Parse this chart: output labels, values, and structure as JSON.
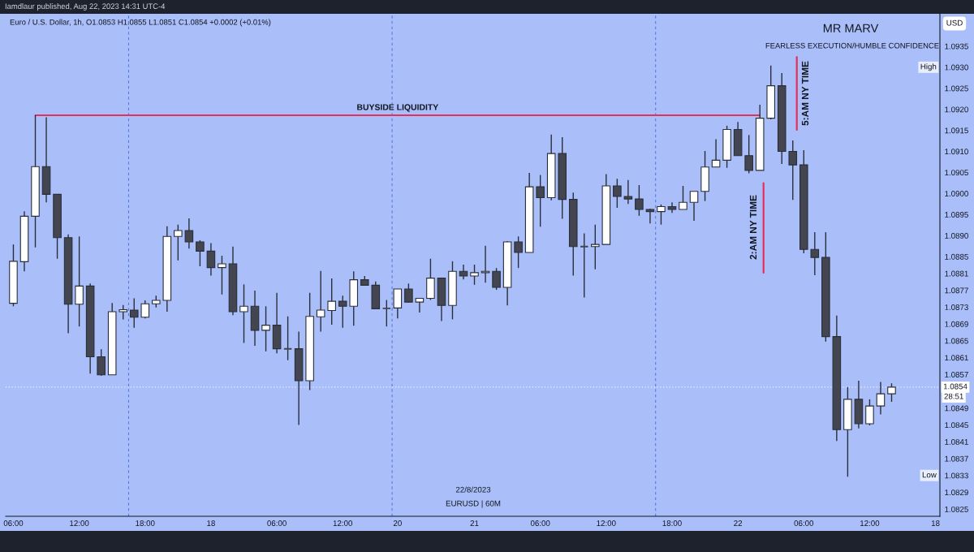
{
  "chart_data": {
    "type": "candlestick",
    "title": "MR MARV",
    "subtitle": "FEARLESS EXECUTION/HUMBLE CONFIDENCE",
    "ylabel": "USD",
    "categories": [
      "06:00",
      null,
      null,
      null,
      null,
      null,
      "12:00",
      null,
      null,
      null,
      null,
      null,
      "18:00",
      null,
      null,
      null,
      null,
      null,
      "18",
      null,
      null,
      null,
      null,
      null,
      "06:00",
      null,
      null,
      null,
      null,
      null,
      "12:00",
      null,
      null,
      null,
      null,
      "20",
      null,
      null,
      null,
      null,
      null,
      null,
      "21",
      null,
      null,
      null,
      null,
      null,
      "06:00",
      null,
      null,
      null,
      null,
      null,
      "12:00",
      null,
      null,
      null,
      null,
      null,
      "18:00",
      null,
      null,
      null,
      null,
      null,
      "22",
      null,
      null,
      null,
      null,
      null,
      "06:00",
      null,
      null,
      null,
      null,
      null,
      "12:00",
      null,
      null,
      null,
      null,
      null,
      "18"
    ],
    "ohlc": [
      [
        1.08739,
        1.08879,
        1.08732,
        1.08839
      ],
      [
        1.08838,
        1.08958,
        1.08815,
        1.08946
      ],
      [
        1.08946,
        1.09186,
        1.08872,
        1.09064
      ],
      [
        1.09064,
        1.09181,
        1.08979,
        1.08998
      ],
      [
        1.08998,
        1.08998,
        1.08845,
        1.08895
      ],
      [
        1.08895,
        1.08903,
        1.08668,
        1.08737
      ],
      [
        1.08737,
        1.08898,
        1.08684,
        1.0878
      ],
      [
        1.0878,
        1.08786,
        1.08572,
        1.08612
      ],
      [
        1.08612,
        1.0863,
        1.08567,
        1.08569
      ],
      [
        1.08569,
        1.0874,
        1.08569,
        1.08719
      ],
      [
        1.08719,
        1.08735,
        1.08701,
        1.08724
      ],
      [
        1.08723,
        1.08751,
        1.08681,
        1.08706
      ],
      [
        1.08706,
        1.08746,
        1.08703,
        1.08738
      ],
      [
        1.08738,
        1.08757,
        1.08729,
        1.08746
      ],
      [
        1.08746,
        1.08922,
        1.08719,
        1.08898
      ],
      [
        1.08898,
        1.08926,
        1.08841,
        1.08912
      ],
      [
        1.08912,
        1.08941,
        1.08869,
        1.08885
      ],
      [
        1.08885,
        1.08889,
        1.08827,
        1.08863
      ],
      [
        1.08863,
        1.08882,
        1.08805,
        1.08824
      ],
      [
        1.08824,
        1.08852,
        1.0876,
        1.08833
      ],
      [
        1.08833,
        1.08874,
        1.08711,
        1.08719
      ],
      [
        1.08719,
        1.08784,
        1.08645,
        1.08732
      ],
      [
        1.08732,
        1.08769,
        1.08638,
        1.08675
      ],
      [
        1.08675,
        1.08732,
        1.08625,
        1.08687
      ],
      [
        1.08687,
        1.08764,
        1.0862,
        1.08631
      ],
      [
        1.08631,
        1.08708,
        1.08604,
        1.08631
      ],
      [
        1.08631,
        1.08672,
        1.0845,
        1.08555
      ],
      [
        1.08555,
        1.08764,
        1.08533,
        1.08708
      ],
      [
        1.08707,
        1.08816,
        1.08672,
        1.08723
      ],
      [
        1.08722,
        1.08798,
        1.08688,
        1.08744
      ],
      [
        1.08744,
        1.08757,
        1.08681,
        1.08732
      ],
      [
        1.08732,
        1.08815,
        1.08686,
        1.08795
      ],
      [
        1.08795,
        1.08804,
        1.08781,
        1.08782
      ],
      [
        1.08782,
        1.08791,
        1.08725,
        1.08726
      ],
      [
        1.08727,
        1.08747,
        1.08684,
        1.08727
      ],
      [
        1.08728,
        1.08773,
        1.08703,
        1.08773
      ],
      [
        1.08773,
        1.08786,
        1.08741,
        1.08742
      ],
      [
        1.08742,
        1.08752,
        1.08717,
        1.08751
      ],
      [
        1.08751,
        1.08845,
        1.08747,
        1.08799
      ],
      [
        1.08799,
        1.08799,
        1.08697,
        1.08734
      ],
      [
        1.08734,
        1.08839,
        1.08701,
        1.08815
      ],
      [
        1.08815,
        1.08831,
        1.08796,
        1.08804
      ],
      [
        1.08804,
        1.08831,
        1.08783,
        1.08812
      ],
      [
        1.08812,
        1.08876,
        1.08788,
        1.08815
      ],
      [
        1.08815,
        1.08823,
        1.08771,
        1.08777
      ],
      [
        1.08777,
        1.08887,
        1.08734,
        1.08885
      ],
      [
        1.08885,
        1.08898,
        1.08823,
        1.0886
      ],
      [
        1.0886,
        1.09049,
        1.0886,
        1.09016
      ],
      [
        1.09016,
        1.09044,
        1.08921,
        1.0899
      ],
      [
        1.0899,
        1.0914,
        1.08984,
        1.09095
      ],
      [
        1.09095,
        1.09134,
        1.0894,
        1.08986
      ],
      [
        1.08986,
        1.09002,
        1.08805,
        1.08874
      ],
      [
        1.08874,
        1.08905,
        1.08753,
        1.08874
      ],
      [
        1.08874,
        1.08926,
        1.0882,
        1.08879
      ],
      [
        1.08879,
        1.09046,
        1.08879,
        1.09018
      ],
      [
        1.09018,
        1.09035,
        1.08966,
        1.08993
      ],
      [
        1.08993,
        1.09032,
        1.08975,
        1.08987
      ],
      [
        1.08987,
        1.0902,
        1.08947,
        1.08962
      ],
      [
        1.08962,
        1.08964,
        1.08929,
        1.08957
      ],
      [
        1.08957,
        1.08974,
        1.08926,
        1.08969
      ],
      [
        1.08969,
        1.08979,
        1.08954,
        1.08962
      ],
      [
        1.08962,
        1.09018,
        1.08962,
        1.08979
      ],
      [
        1.08979,
        1.09005,
        1.08935,
        1.09005
      ],
      [
        1.09005,
        1.09101,
        1.08982,
        1.09063
      ],
      [
        1.09063,
        1.09129,
        1.09063,
        1.09079
      ],
      [
        1.09079,
        1.09161,
        1.09061,
        1.09152
      ],
      [
        1.09152,
        1.0917,
        1.0909,
        1.0909
      ],
      [
        1.0909,
        1.09139,
        1.09048,
        1.09055
      ],
      [
        1.09055,
        1.09211,
        1.09055,
        1.09179
      ],
      [
        1.09179,
        1.09304,
        1.09176,
        1.09256
      ],
      [
        1.09256,
        1.09286,
        1.0907,
        1.091
      ],
      [
        1.091,
        1.09126,
        1.08985,
        1.09068
      ],
      [
        1.09068,
        1.09103,
        1.08858,
        1.08867
      ],
      [
        1.08867,
        1.08908,
        1.08806,
        1.08848
      ],
      [
        1.08848,
        1.08908,
        1.08648,
        1.0866
      ],
      [
        1.0866,
        1.0871,
        1.08412,
        1.08439
      ],
      [
        1.08439,
        1.0854,
        1.08327,
        1.08511
      ],
      [
        1.08511,
        1.08555,
        1.08442,
        1.08453
      ],
      [
        1.08453,
        1.08511,
        1.08449,
        1.08495
      ],
      [
        1.08495,
        1.08552,
        1.08475,
        1.08524
      ],
      [
        1.08524,
        1.08549,
        1.08505,
        1.0854
      ],
      null,
      null,
      null,
      null
    ],
    "colors": [
      "#ffffff",
      "#ffffff",
      "#ffffff",
      "#434651",
      "#434651",
      "#434651",
      "#ffffff",
      "#434651",
      "#434651",
      "#ffffff",
      "#ffffff",
      "#434651",
      "#ffffff",
      "#ffffff",
      "#ffffff",
      "#ffffff",
      "#434651",
      "#434651",
      "#434651",
      "#ffffff",
      "#434651",
      "#ffffff",
      "#434651",
      "#ffffff",
      "#434651",
      "#434651",
      "#434651",
      "#ffffff",
      "#ffffff",
      "#ffffff",
      "#434651",
      "#ffffff",
      "#434651",
      "#434651",
      "#434651",
      "#ffffff",
      "#434651",
      "#ffffff",
      "#ffffff",
      "#434651",
      "#ffffff",
      "#434651",
      "#ffffff",
      "#ffffff",
      "#434651",
      "#ffffff",
      "#434651",
      "#ffffff",
      "#434651",
      "#ffffff",
      "#434651",
      "#434651",
      "#434651",
      "#ffffff",
      "#ffffff",
      "#434651",
      "#434651",
      "#434651",
      "#434651",
      "#ffffff",
      "#434651",
      "#ffffff",
      "#ffffff",
      "#ffffff",
      "#ffffff",
      "#ffffff",
      "#434651",
      "#434651",
      "#ffffff",
      "#ffffff",
      "#434651",
      "#434651",
      "#434651",
      "#434651",
      "#434651",
      "#434651",
      "#ffffff",
      "#434651",
      "#ffffff",
      "#ffffff",
      "#ffffff",
      null,
      null,
      null,
      null
    ],
    "series": [
      {
        "type": "line",
        "name": "BUYSIDE LIQUIDITY",
        "color": "#e5305a",
        "values": [
          null,
          null,
          1.09186,
          1.09186,
          1.09186,
          1.09186,
          1.09186,
          1.09186,
          1.09186,
          1.09186,
          1.09186,
          1.09186,
          1.09186,
          1.09186,
          1.09186,
          1.09186,
          1.09186,
          1.09186,
          1.09186,
          1.09186,
          1.09186,
          1.09186,
          1.09186,
          1.09186,
          1.09186,
          1.09186,
          1.09186,
          1.09186,
          1.09186,
          1.09186,
          1.09186,
          1.09186,
          1.09186,
          1.09186,
          1.09186,
          1.09186,
          1.09186,
          1.09186,
          1.09186,
          1.09186,
          1.09186,
          1.09186,
          1.09186,
          1.09186,
          1.09186,
          1.09186,
          1.09186,
          1.09186,
          1.09186,
          1.09186,
          1.09186,
          1.09186,
          1.09186,
          1.09186,
          1.09186,
          1.09186,
          1.09186,
          1.09186,
          1.09186,
          1.09186,
          1.09186,
          1.09186,
          1.09186,
          1.09186,
          1.09186,
          1.09186,
          1.09186,
          1.09186,
          1.09186,
          null,
          null,
          null,
          null,
          null,
          null,
          null,
          null,
          null,
          null,
          null,
          null,
          null,
          null,
          null,
          null
        ]
      }
    ],
    "ylim": [
      1.08233,
      1.09427
    ],
    "yticks": [
      1.0825,
      1.0829,
      1.0833,
      1.0837,
      1.0841,
      1.0845,
      1.0849,
      1.0857,
      1.0861,
      1.0865,
      1.0869,
      1.0873,
      1.0877,
      1.0881,
      1.0885,
      {
        "value": 1.089,
        "label": "1.0890"
      },
      1.0895,
      {
        "value": 1.09,
        "label": "1.0900"
      },
      1.0905,
      {
        "value": 1.091,
        "label": "1.0910"
      },
      1.0915,
      {
        "value": 1.092,
        "label": "1.0920"
      },
      1.0925,
      {
        "value": 1.093,
        "label": "1.0930"
      },
      1.0935
    ],
    "ref_lines": [
      {
        "axis": "y",
        "value": 1.0854,
        "label": "1.0854",
        "line_style": "dotted",
        "color": "#eef2fc"
      }
    ],
    "annotations": [
      "Iamdlaur published, Aug 22, 2023 14:31 UTC-4",
      "Euro / U.S. Dollar, 1h, O1.0853 H1.0855 L1.0851 C1.0854 +0.0002 (+0.01%)",
      {
        "text": "High",
        "y": 1.093
      },
      {
        "text": "Low",
        "y": 1.0833
      },
      "28:51",
      "2:AM NY TIME",
      "5:AM NY TIME",
      "22/8/2023",
      "EURUSD | 60M"
    ]
  }
}
